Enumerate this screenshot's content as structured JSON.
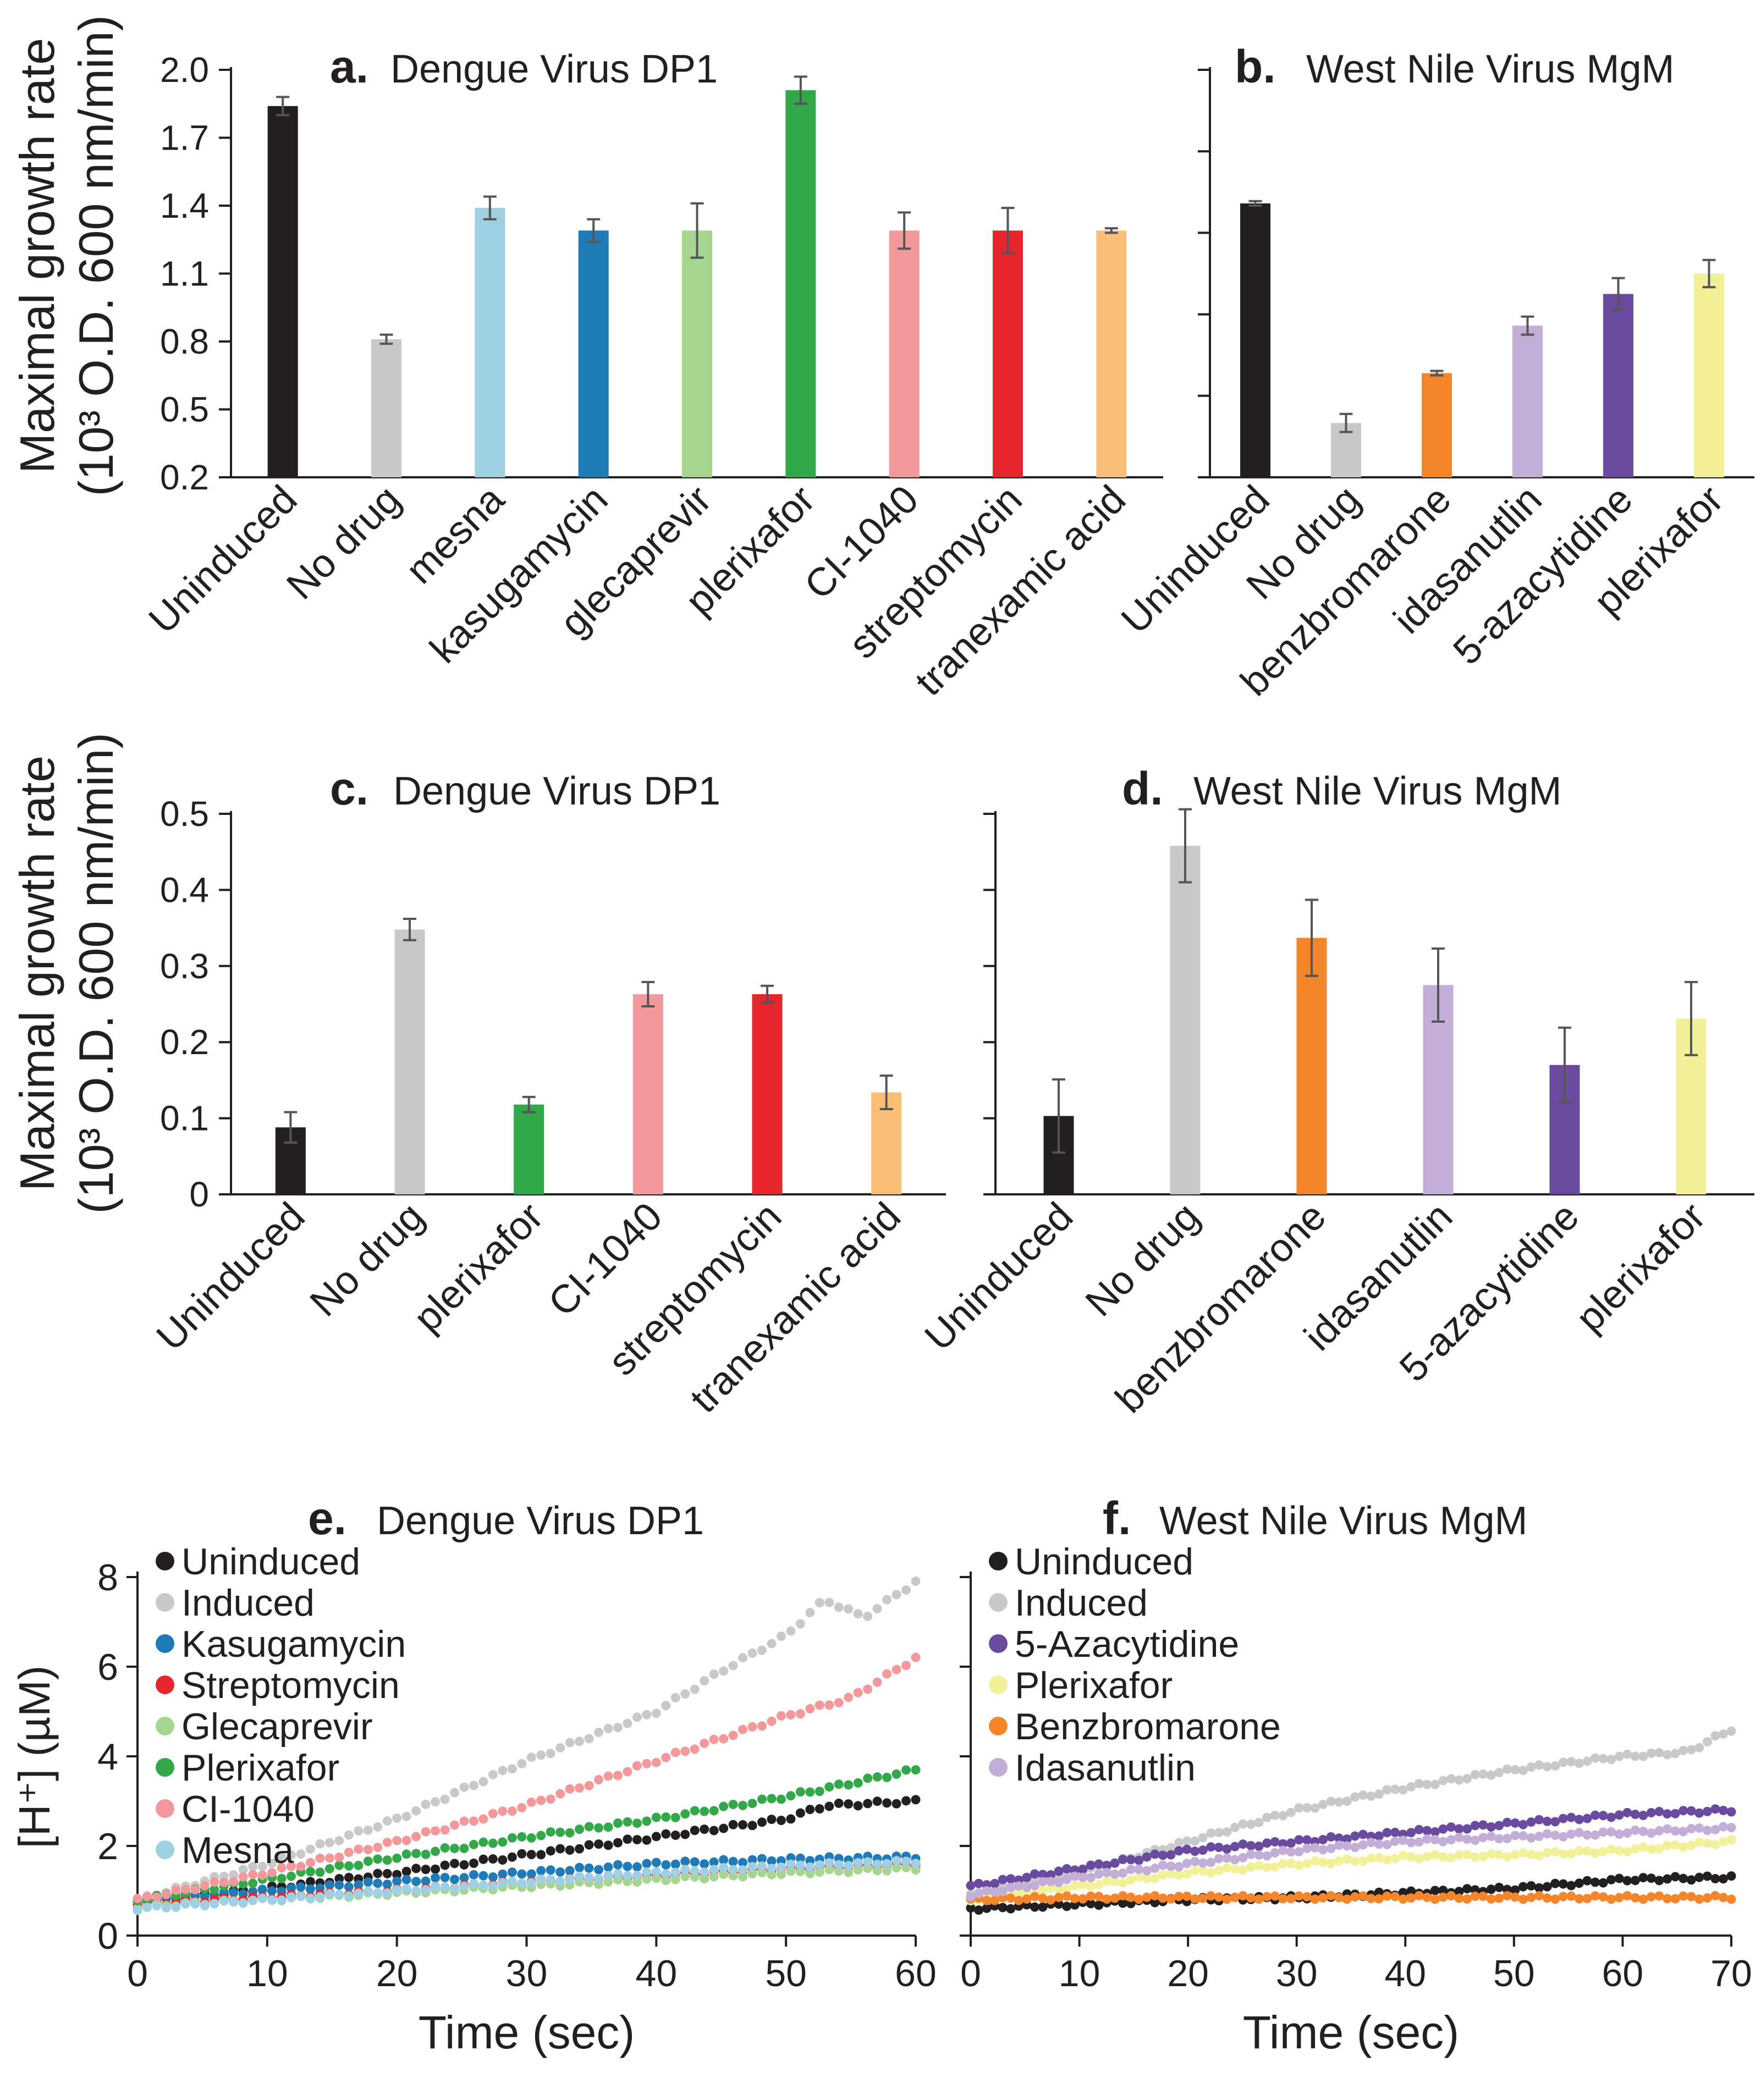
{
  "figure": {
    "y_label_line1": "Maximal growth rate",
    "y_label_line2": "(10³ O.D. 600 nm/min)",
    "hplus_label": "[H⁺] (µM)",
    "time_label": "Time (sec)"
  },
  "colors": {
    "Uninduced": "#231f20",
    "No drug": "#c8c9cb",
    "Induced": "#c8c9cb",
    "mesna": "#9fcfe3",
    "kasugamycin": "#1f7bb7",
    "glecaprevir": "#a6d590",
    "plerixafor": "#33a84a",
    "plerixafor_wnv": "#f2f19a",
    "CI-1040": "#f4999b",
    "streptomycin": "#e7252d",
    "tranexamic acid": "#fcbd76",
    "benzbromarone": "#f3852a",
    "idasanutlin": "#c2aed7",
    "5-azacytidine": "#6a4a9f"
  },
  "chart_data": [
    {
      "id": "a",
      "type": "bar",
      "letter": "a.",
      "title": "Dengue Virus DP1",
      "categories": [
        "Uninduced",
        "No drug",
        "mesna",
        "kasugamycin",
        "glecaprevir",
        "plerixafor",
        "CI-1040",
        "streptomycin",
        "tranexamic acid"
      ],
      "values": [
        1.84,
        0.81,
        1.39,
        1.29,
        1.29,
        1.91,
        1.29,
        1.29,
        1.29
      ],
      "errors": [
        0.04,
        0.02,
        0.05,
        0.05,
        0.12,
        0.06,
        0.08,
        0.1,
        0.01
      ],
      "yticks": [
        "0.2",
        "0.5",
        "0.8",
        "1.1",
        "1.4",
        "1.7",
        "2.0"
      ],
      "ylim": [
        0.2,
        2.0
      ]
    },
    {
      "id": "b",
      "type": "bar",
      "letter": "b.",
      "title": "West Nile Virus MgM",
      "categories": [
        "Uninduced",
        "No drug",
        "benzbromarone",
        "idasanutlin",
        "5-azacytidine",
        "plerixafor"
      ],
      "values": [
        1.41,
        0.44,
        0.66,
        0.87,
        1.01,
        1.1
      ],
      "errors": [
        0.01,
        0.04,
        0.01,
        0.04,
        0.07,
        0.06
      ],
      "ylim": [
        0.2,
        2.0
      ]
    },
    {
      "id": "c",
      "type": "bar",
      "letter": "c.",
      "title": "Dengue Virus DP1",
      "categories": [
        "Uninduced",
        "No drug",
        "plerixafor",
        "CI-1040",
        "streptomycin",
        "tranexamic acid"
      ],
      "values": [
        0.088,
        0.348,
        0.118,
        0.263,
        0.263,
        0.134
      ],
      "errors": [
        0.02,
        0.014,
        0.01,
        0.016,
        0.011,
        0.022
      ],
      "yticks": [
        "0",
        "0.1",
        "0.2",
        "0.3",
        "0.4",
        "0.5"
      ],
      "ylim": [
        0,
        0.5
      ]
    },
    {
      "id": "d",
      "type": "bar",
      "letter": "d.",
      "title": "West Nile Virus MgM",
      "categories": [
        "Uninduced",
        "No drug",
        "benzbromarone",
        "idasanutlin",
        "5-azacytidine",
        "plerixafor"
      ],
      "values": [
        0.103,
        0.458,
        0.337,
        0.275,
        0.17,
        0.231
      ],
      "errors": [
        0.048,
        0.048,
        0.05,
        0.048,
        0.049,
        0.048
      ],
      "ylim": [
        0,
        0.5
      ]
    },
    {
      "id": "e",
      "type": "scatter",
      "letter": "e.",
      "title": "Dengue Virus DP1",
      "xlabel": "Time (sec)",
      "ylabel": "[H⁺] (µM)",
      "xlim": [
        0,
        60
      ],
      "ylim": [
        0,
        8
      ],
      "xticks": [
        "0",
        "10",
        "20",
        "30",
        "40",
        "50",
        "60"
      ],
      "yticks": [
        "0",
        "2",
        "4",
        "6",
        "8"
      ],
      "series": [
        {
          "name": "Uninduced",
          "color": "#231f20",
          "points": [
            [
              0,
              0.75
            ],
            [
              10,
              1.05
            ],
            [
              20,
              1.4
            ],
            [
              30,
              1.8
            ],
            [
              40,
              2.2
            ],
            [
              50,
              2.6
            ],
            [
              53,
              2.9
            ],
            [
              60,
              3.0
            ]
          ]
        },
        {
          "name": "Induced",
          "color": "#c8c9cb",
          "points": [
            [
              0,
              0.8
            ],
            [
              10,
              1.6
            ],
            [
              20,
              2.6
            ],
            [
              30,
              3.9
            ],
            [
              40,
              5.0
            ],
            [
              45,
              5.9
            ],
            [
              50,
              6.7
            ],
            [
              53,
              7.5
            ],
            [
              56,
              7.1
            ],
            [
              60,
              7.9
            ]
          ]
        },
        {
          "name": "Kasugamycin",
          "color": "#1f7bb7",
          "points": [
            [
              0,
              0.8
            ],
            [
              10,
              1.0
            ],
            [
              20,
              1.2
            ],
            [
              30,
              1.4
            ],
            [
              40,
              1.6
            ],
            [
              50,
              1.7
            ],
            [
              60,
              1.75
            ]
          ]
        },
        {
          "name": "Streptomycin",
          "color": "#e7252d",
          "points": [
            [
              0,
              0.7
            ],
            [
              10,
              0.85
            ],
            [
              20,
              1.0
            ],
            [
              30,
              1.2
            ],
            [
              40,
              1.35
            ],
            [
              50,
              1.5
            ],
            [
              60,
              1.6
            ]
          ]
        },
        {
          "name": "Glecaprevir",
          "color": "#a6d590",
          "points": [
            [
              0,
              0.65
            ],
            [
              10,
              0.8
            ],
            [
              20,
              0.95
            ],
            [
              30,
              1.1
            ],
            [
              40,
              1.25
            ],
            [
              50,
              1.4
            ],
            [
              60,
              1.5
            ]
          ]
        },
        {
          "name": "Plerixafor",
          "color": "#33a84a",
          "points": [
            [
              0,
              0.8
            ],
            [
              10,
              1.25
            ],
            [
              20,
              1.75
            ],
            [
              30,
              2.2
            ],
            [
              40,
              2.6
            ],
            [
              50,
              3.1
            ],
            [
              60,
              3.7
            ]
          ]
        },
        {
          "name": "CI-1040",
          "color": "#f4999b",
          "points": [
            [
              0,
              0.8
            ],
            [
              10,
              1.4
            ],
            [
              20,
              2.1
            ],
            [
              30,
              2.9
            ],
            [
              40,
              3.9
            ],
            [
              50,
              4.9
            ],
            [
              55,
              5.3
            ],
            [
              60,
              6.2
            ]
          ]
        },
        {
          "name": "Mesna",
          "color": "#9fcfe3",
          "points": [
            [
              0,
              0.6
            ],
            [
              10,
              0.8
            ],
            [
              20,
              1.0
            ],
            [
              30,
              1.2
            ],
            [
              40,
              1.4
            ],
            [
              50,
              1.55
            ],
            [
              60,
              1.65
            ]
          ]
        }
      ]
    },
    {
      "id": "f",
      "type": "scatter",
      "letter": "f.",
      "title": "West Nile Virus MgM",
      "xlabel": "Time (sec)",
      "xlim": [
        0,
        70
      ],
      "ylim": [
        0,
        8
      ],
      "xticks": [
        "0",
        "10",
        "20",
        "30",
        "40",
        "50",
        "60",
        "70"
      ],
      "series": [
        {
          "name": "Uninduced",
          "color": "#231f20",
          "points": [
            [
              0,
              0.6
            ],
            [
              10,
              0.7
            ],
            [
              20,
              0.8
            ],
            [
              30,
              0.85
            ],
            [
              40,
              0.95
            ],
            [
              50,
              1.05
            ],
            [
              60,
              1.25
            ],
            [
              70,
              1.3
            ]
          ]
        },
        {
          "name": "Induced",
          "color": "#c8c9cb",
          "points": [
            [
              0,
              0.9
            ],
            [
              10,
              1.4
            ],
            [
              20,
              2.1
            ],
            [
              30,
              2.8
            ],
            [
              40,
              3.3
            ],
            [
              50,
              3.7
            ],
            [
              60,
              4.0
            ],
            [
              66,
              4.1
            ],
            [
              70,
              4.6
            ]
          ]
        },
        {
          "name": "5-Azacytidine",
          "color": "#6a4a9f",
          "points": [
            [
              0,
              1.1
            ],
            [
              10,
              1.5
            ],
            [
              20,
              1.9
            ],
            [
              30,
              2.1
            ],
            [
              40,
              2.3
            ],
            [
              50,
              2.5
            ],
            [
              60,
              2.7
            ],
            [
              70,
              2.8
            ]
          ]
        },
        {
          "name": "Plerixafor",
          "color": "#f2f19a",
          "points": [
            [
              0,
              0.8
            ],
            [
              10,
              1.1
            ],
            [
              20,
              1.4
            ],
            [
              30,
              1.6
            ],
            [
              40,
              1.75
            ],
            [
              50,
              1.8
            ],
            [
              60,
              1.9
            ],
            [
              70,
              2.1
            ]
          ]
        },
        {
          "name": "Benzbromarone",
          "color": "#f3852a",
          "points": [
            [
              0,
              0.8
            ],
            [
              10,
              0.85
            ],
            [
              20,
              0.85
            ],
            [
              30,
              0.85
            ],
            [
              40,
              0.85
            ],
            [
              50,
              0.85
            ],
            [
              60,
              0.85
            ],
            [
              70,
              0.85
            ]
          ]
        },
        {
          "name": "Idasanutlin",
          "color": "#c2aed7",
          "points": [
            [
              0,
              0.9
            ],
            [
              10,
              1.3
            ],
            [
              20,
              1.6
            ],
            [
              30,
              1.9
            ],
            [
              40,
              2.1
            ],
            [
              50,
              2.2
            ],
            [
              60,
              2.3
            ],
            [
              70,
              2.4
            ]
          ]
        }
      ]
    }
  ]
}
